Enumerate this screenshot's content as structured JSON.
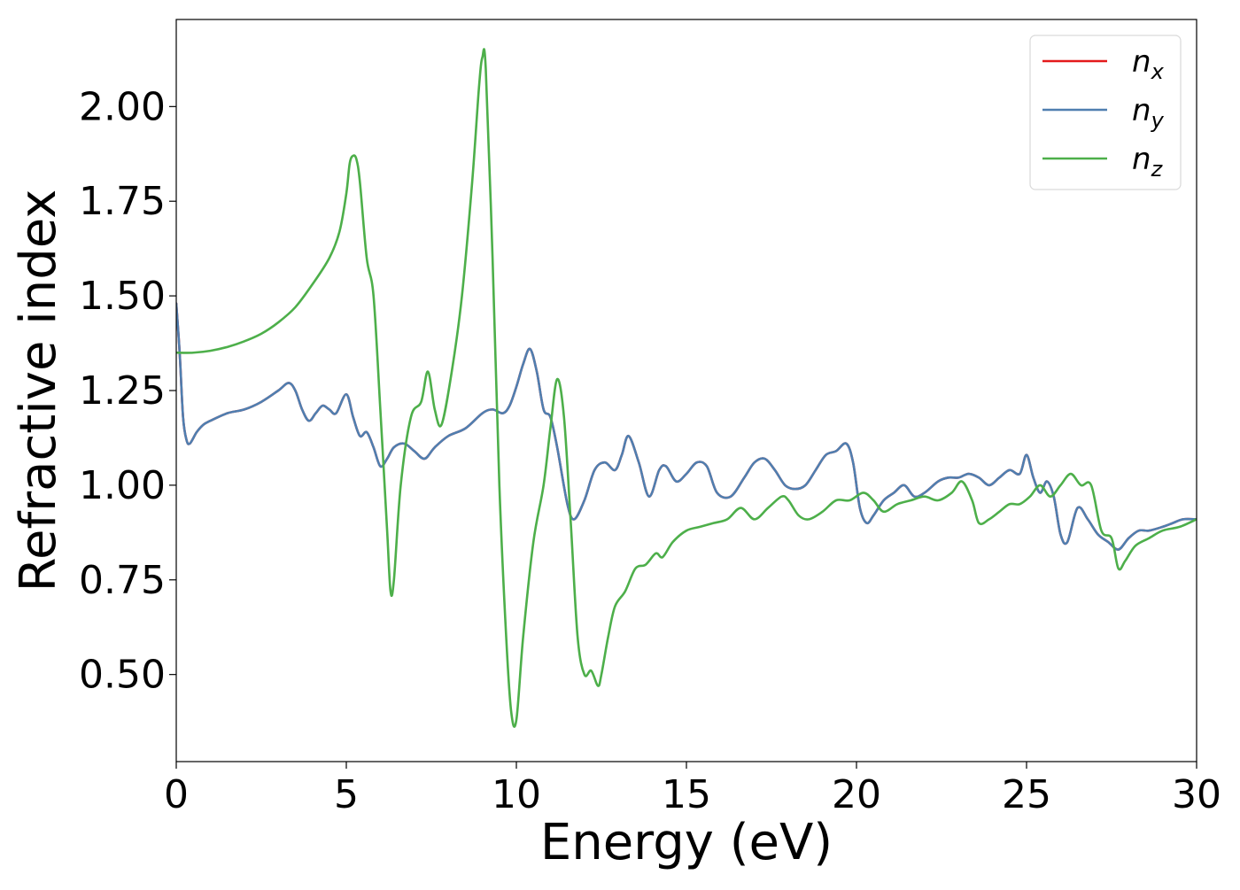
{
  "chart_data": {
    "type": "line",
    "title": "",
    "xlabel": "Energy (eV)",
    "ylabel": "Refractive index",
    "xlim": [
      0,
      30
    ],
    "ylim": [
      0.27,
      2.23
    ],
    "xticks": [
      0,
      5,
      10,
      15,
      20,
      25,
      30
    ],
    "xtick_labels": [
      "0",
      "5",
      "10",
      "15",
      "20",
      "25",
      "30"
    ],
    "yticks": [
      0.5,
      0.75,
      1.0,
      1.25,
      1.5,
      1.75,
      2.0
    ],
    "ytick_labels": [
      "0.50",
      "0.75",
      "1.00",
      "1.25",
      "1.50",
      "1.75",
      "2.00"
    ],
    "grid": false,
    "legend_position": "top-right",
    "series": [
      {
        "name": "n_x",
        "label_base": "n",
        "label_sub": "x",
        "color": "#e41a1c",
        "x": [
          0,
          0.1,
          0.2,
          0.3,
          0.4,
          0.6,
          0.8,
          1.0,
          1.5,
          2.0,
          2.5,
          3.0,
          3.3,
          3.5,
          3.7,
          3.9,
          4.1,
          4.3,
          4.5,
          4.7,
          5.0,
          5.2,
          5.4,
          5.6,
          5.8,
          6.0,
          6.2,
          6.4,
          6.7,
          7.0,
          7.3,
          7.6,
          8.0,
          8.5,
          9.0,
          9.3,
          9.6,
          9.8,
          10.0,
          10.2,
          10.4,
          10.6,
          10.8,
          11.0,
          11.2,
          11.5,
          11.7,
          12.0,
          12.3,
          12.6,
          12.9,
          13.1,
          13.3,
          13.6,
          13.9,
          14.2,
          14.4,
          14.7,
          15.0,
          15.3,
          15.6,
          15.9,
          16.3,
          16.7,
          17.0,
          17.3,
          17.6,
          17.9,
          18.2,
          18.5,
          18.8,
          19.1,
          19.4,
          19.7,
          19.9,
          20.1,
          20.3,
          20.5,
          20.8,
          21.1,
          21.4,
          21.7,
          22.0,
          22.4,
          22.7,
          23.0,
          23.3,
          23.6,
          23.9,
          24.2,
          24.5,
          24.8,
          25.0,
          25.2,
          25.4,
          25.6,
          25.8,
          26.0,
          26.2,
          26.5,
          26.8,
          27.1,
          27.4,
          27.7,
          28.0,
          28.3,
          28.6,
          29.0,
          29.3,
          29.6,
          30.0
        ],
        "y": [
          1.48,
          1.35,
          1.18,
          1.12,
          1.11,
          1.14,
          1.16,
          1.17,
          1.19,
          1.2,
          1.22,
          1.25,
          1.27,
          1.25,
          1.2,
          1.17,
          1.19,
          1.21,
          1.2,
          1.19,
          1.24,
          1.18,
          1.13,
          1.14,
          1.1,
          1.05,
          1.07,
          1.1,
          1.11,
          1.09,
          1.07,
          1.1,
          1.13,
          1.15,
          1.19,
          1.2,
          1.19,
          1.21,
          1.26,
          1.32,
          1.36,
          1.3,
          1.2,
          1.18,
          1.1,
          0.95,
          0.91,
          0.96,
          1.04,
          1.06,
          1.04,
          1.08,
          1.13,
          1.06,
          0.97,
          1.04,
          1.05,
          1.01,
          1.03,
          1.06,
          1.05,
          0.98,
          0.97,
          1.02,
          1.06,
          1.07,
          1.04,
          1.0,
          0.99,
          1.0,
          1.04,
          1.08,
          1.09,
          1.11,
          1.06,
          0.94,
          0.9,
          0.92,
          0.96,
          0.98,
          1.0,
          0.97,
          0.98,
          1.01,
          1.02,
          1.02,
          1.03,
          1.02,
          1.0,
          1.02,
          1.04,
          1.03,
          1.08,
          1.02,
          0.98,
          1.01,
          0.97,
          0.87,
          0.85,
          0.94,
          0.91,
          0.87,
          0.85,
          0.83,
          0.86,
          0.88,
          0.88,
          0.89,
          0.9,
          0.91,
          0.91
        ]
      },
      {
        "name": "n_y",
        "label_base": "n",
        "label_sub": "y",
        "color": "#4f7fb0",
        "x": [
          0,
          0.1,
          0.2,
          0.3,
          0.4,
          0.6,
          0.8,
          1.0,
          1.5,
          2.0,
          2.5,
          3.0,
          3.3,
          3.5,
          3.7,
          3.9,
          4.1,
          4.3,
          4.5,
          4.7,
          5.0,
          5.2,
          5.4,
          5.6,
          5.8,
          6.0,
          6.2,
          6.4,
          6.7,
          7.0,
          7.3,
          7.6,
          8.0,
          8.5,
          9.0,
          9.3,
          9.6,
          9.8,
          10.0,
          10.2,
          10.4,
          10.6,
          10.8,
          11.0,
          11.2,
          11.5,
          11.7,
          12.0,
          12.3,
          12.6,
          12.9,
          13.1,
          13.3,
          13.6,
          13.9,
          14.2,
          14.4,
          14.7,
          15.0,
          15.3,
          15.6,
          15.9,
          16.3,
          16.7,
          17.0,
          17.3,
          17.6,
          17.9,
          18.2,
          18.5,
          18.8,
          19.1,
          19.4,
          19.7,
          19.9,
          20.1,
          20.3,
          20.5,
          20.8,
          21.1,
          21.4,
          21.7,
          22.0,
          22.4,
          22.7,
          23.0,
          23.3,
          23.6,
          23.9,
          24.2,
          24.5,
          24.8,
          25.0,
          25.2,
          25.4,
          25.6,
          25.8,
          26.0,
          26.2,
          26.5,
          26.8,
          27.1,
          27.4,
          27.7,
          28.0,
          28.3,
          28.6,
          29.0,
          29.3,
          29.6,
          30.0
        ],
        "y": [
          1.48,
          1.35,
          1.18,
          1.12,
          1.11,
          1.14,
          1.16,
          1.17,
          1.19,
          1.2,
          1.22,
          1.25,
          1.27,
          1.25,
          1.2,
          1.17,
          1.19,
          1.21,
          1.2,
          1.19,
          1.24,
          1.18,
          1.13,
          1.14,
          1.1,
          1.05,
          1.07,
          1.1,
          1.11,
          1.09,
          1.07,
          1.1,
          1.13,
          1.15,
          1.19,
          1.2,
          1.19,
          1.21,
          1.26,
          1.32,
          1.36,
          1.3,
          1.2,
          1.18,
          1.1,
          0.95,
          0.91,
          0.96,
          1.04,
          1.06,
          1.04,
          1.08,
          1.13,
          1.06,
          0.97,
          1.04,
          1.05,
          1.01,
          1.03,
          1.06,
          1.05,
          0.98,
          0.97,
          1.02,
          1.06,
          1.07,
          1.04,
          1.0,
          0.99,
          1.0,
          1.04,
          1.08,
          1.09,
          1.11,
          1.06,
          0.94,
          0.9,
          0.92,
          0.96,
          0.98,
          1.0,
          0.97,
          0.98,
          1.01,
          1.02,
          1.02,
          1.03,
          1.02,
          1.0,
          1.02,
          1.04,
          1.03,
          1.08,
          1.02,
          0.98,
          1.01,
          0.97,
          0.87,
          0.85,
          0.94,
          0.91,
          0.87,
          0.85,
          0.83,
          0.86,
          0.88,
          0.88,
          0.89,
          0.9,
          0.91,
          0.91
        ]
      },
      {
        "name": "n_z",
        "label_base": "n",
        "label_sub": "z",
        "color": "#4daf4a",
        "x": [
          0,
          0.5,
          1.0,
          1.5,
          2.0,
          2.5,
          3.0,
          3.5,
          4.0,
          4.5,
          4.8,
          5.0,
          5.1,
          5.2,
          5.3,
          5.4,
          5.6,
          5.8,
          6.0,
          6.2,
          6.3,
          6.4,
          6.6,
          6.9,
          7.2,
          7.4,
          7.6,
          7.8,
          8.1,
          8.4,
          8.7,
          8.9,
          9.0,
          9.1,
          9.3,
          9.5,
          9.7,
          9.85,
          10.0,
          10.2,
          10.5,
          10.8,
          11.0,
          11.2,
          11.4,
          11.6,
          11.8,
          12.0,
          12.2,
          12.4,
          12.5,
          12.7,
          12.9,
          13.2,
          13.5,
          13.8,
          14.1,
          14.3,
          14.6,
          15.0,
          15.4,
          15.8,
          16.2,
          16.6,
          17.0,
          17.4,
          17.8,
          18.0,
          18.3,
          18.6,
          19.0,
          19.4,
          19.8,
          20.2,
          20.5,
          20.8,
          21.2,
          21.6,
          22.0,
          22.4,
          22.8,
          23.1,
          23.4,
          23.6,
          23.9,
          24.2,
          24.5,
          24.8,
          25.1,
          25.4,
          25.7,
          26.0,
          26.3,
          26.6,
          26.9,
          27.2,
          27.5,
          27.7,
          27.9,
          28.2,
          28.6,
          29.0,
          29.5,
          30.0
        ],
        "y": [
          1.35,
          1.35,
          1.355,
          1.365,
          1.38,
          1.4,
          1.43,
          1.47,
          1.53,
          1.6,
          1.67,
          1.77,
          1.85,
          1.87,
          1.86,
          1.8,
          1.6,
          1.5,
          1.2,
          0.88,
          0.72,
          0.75,
          1.0,
          1.18,
          1.22,
          1.3,
          1.2,
          1.16,
          1.3,
          1.5,
          1.8,
          2.05,
          2.13,
          2.1,
          1.6,
          1.0,
          0.6,
          0.4,
          0.38,
          0.6,
          0.85,
          1.0,
          1.15,
          1.28,
          1.18,
          0.9,
          0.6,
          0.5,
          0.51,
          0.47,
          0.5,
          0.6,
          0.68,
          0.72,
          0.78,
          0.79,
          0.82,
          0.81,
          0.85,
          0.88,
          0.89,
          0.9,
          0.91,
          0.94,
          0.91,
          0.94,
          0.97,
          0.96,
          0.92,
          0.91,
          0.93,
          0.96,
          0.96,
          0.98,
          0.96,
          0.93,
          0.95,
          0.96,
          0.97,
          0.96,
          0.98,
          1.01,
          0.96,
          0.9,
          0.91,
          0.93,
          0.95,
          0.95,
          0.97,
          1.0,
          0.97,
          1.0,
          1.03,
          1.0,
          1.0,
          0.88,
          0.86,
          0.78,
          0.8,
          0.84,
          0.86,
          0.88,
          0.89,
          0.91
        ]
      }
    ]
  }
}
